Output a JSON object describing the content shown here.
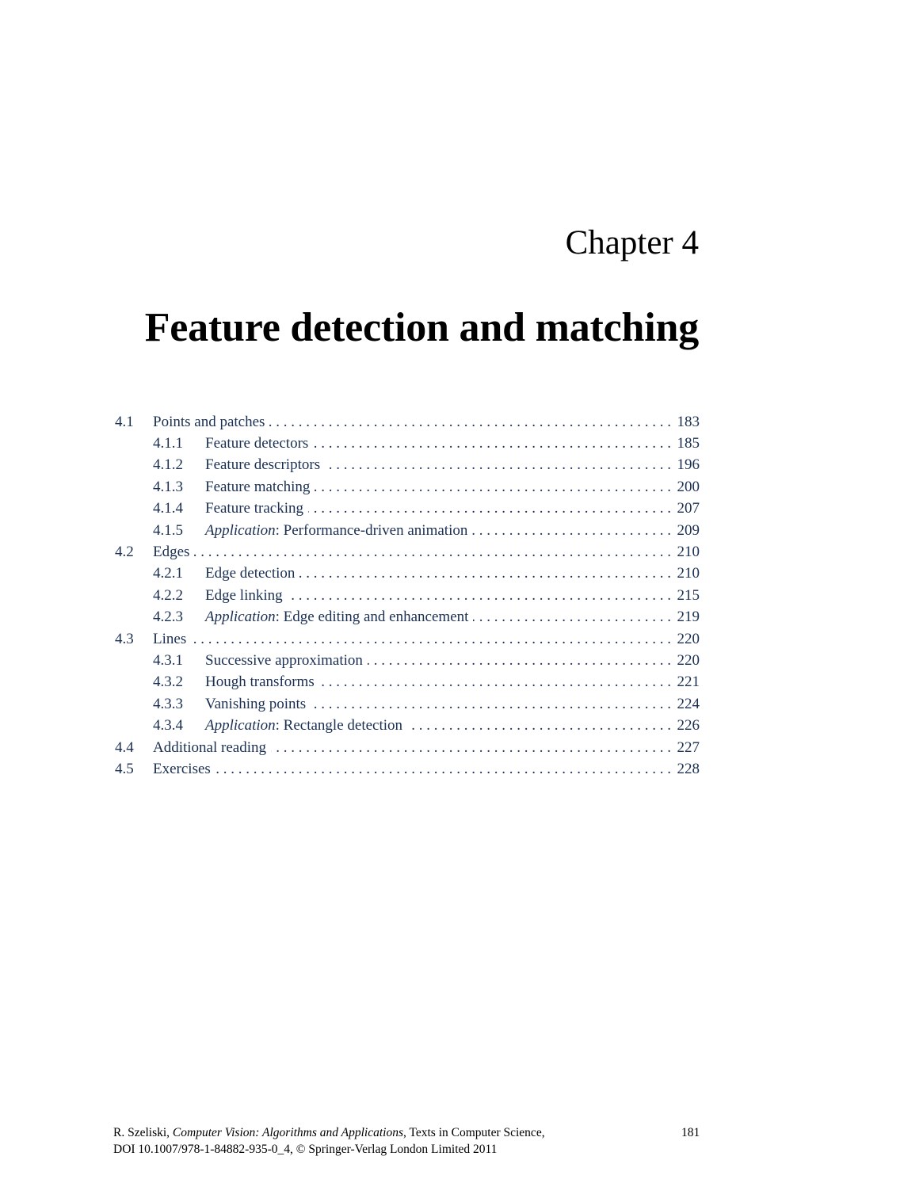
{
  "chapter": {
    "label": "Chapter 4",
    "title": "Feature detection and matching"
  },
  "toc": [
    {
      "level": 1,
      "num": "4.1",
      "prefix": "",
      "title": "Points and patches",
      "page": "183"
    },
    {
      "level": 2,
      "num": "4.1.1",
      "prefix": "",
      "title": "Feature detectors",
      "page": "185"
    },
    {
      "level": 2,
      "num": "4.1.2",
      "prefix": "",
      "title": "Feature descriptors",
      "page": "196"
    },
    {
      "level": 2,
      "num": "4.1.3",
      "prefix": "",
      "title": "Feature matching",
      "page": "200"
    },
    {
      "level": 2,
      "num": "4.1.4",
      "prefix": "",
      "title": "Feature tracking",
      "page": "207"
    },
    {
      "level": 2,
      "num": "4.1.5",
      "prefix": "Application",
      "title": ": Performance-driven animation",
      "page": "209"
    },
    {
      "level": 1,
      "num": "4.2",
      "prefix": "",
      "title": "Edges",
      "page": "210"
    },
    {
      "level": 2,
      "num": "4.2.1",
      "prefix": "",
      "title": "Edge detection",
      "page": "210"
    },
    {
      "level": 2,
      "num": "4.2.2",
      "prefix": "",
      "title": "Edge linking",
      "page": "215"
    },
    {
      "level": 2,
      "num": "4.2.3",
      "prefix": "Application",
      "title": ": Edge editing and enhancement",
      "page": "219"
    },
    {
      "level": 1,
      "num": "4.3",
      "prefix": "",
      "title": "Lines",
      "page": "220"
    },
    {
      "level": 2,
      "num": "4.3.1",
      "prefix": "",
      "title": "Successive approximation",
      "page": "220"
    },
    {
      "level": 2,
      "num": "4.3.2",
      "prefix": "",
      "title": "Hough transforms",
      "page": "221"
    },
    {
      "level": 2,
      "num": "4.3.3",
      "prefix": "",
      "title": "Vanishing points",
      "page": "224"
    },
    {
      "level": 2,
      "num": "4.3.4",
      "prefix": "Application",
      "title": ": Rectangle detection",
      "page": "226"
    },
    {
      "level": 1,
      "num": "4.4",
      "prefix": "",
      "title": "Additional reading",
      "page": "227"
    },
    {
      "level": 1,
      "num": "4.5",
      "prefix": "",
      "title": "Exercises",
      "page": "228"
    }
  ],
  "footer": {
    "line1_start": "R. Szeliski, ",
    "line1_italic": "Computer Vision: Algorithms and Applications",
    "line1_end": ", Texts in Computer Science,",
    "line2": "DOI 10.1007/978-1-84882-935-0_4, © Springer-Verlag London Limited 2011",
    "page_number": "181"
  },
  "colors": {
    "link": "#1a2f52",
    "text": "#000000"
  }
}
